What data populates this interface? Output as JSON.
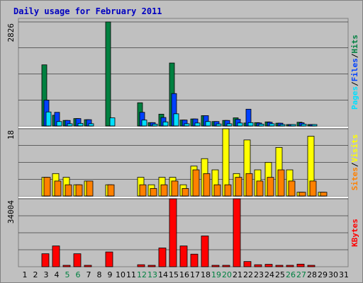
{
  "title": "Daily usage for February 2011",
  "colors": {
    "background": "#c0c0c0",
    "title": "#0000c0",
    "hits": "#008040",
    "files": "#0040ff",
    "pages": "#00e0ff",
    "visits": "#ffff00",
    "sites": "#ff8000",
    "kbytes": "#ff0000",
    "weekend_day": "#008040",
    "weekday": "#000000",
    "separator": "#ffffff",
    "grid": "#000000"
  },
  "chart_data": {
    "type": "bar",
    "title": "Daily usage for February 2011",
    "days": [
      "1",
      "2",
      "3",
      "4",
      "5",
      "6",
      "7",
      "8",
      "9",
      "10",
      "11",
      "12",
      "13",
      "14",
      "15",
      "16",
      "17",
      "18",
      "19",
      "20",
      "21",
      "22",
      "23",
      "24",
      "25",
      "26",
      "27",
      "28",
      "29",
      "30",
      "31"
    ],
    "weekend_days": [
      "5",
      "6",
      "12",
      "13",
      "19",
      "20",
      "26",
      "27"
    ],
    "panels": [
      {
        "name": "hits-panel",
        "max_label": "2826",
        "ymax": 2826,
        "series": [
          {
            "name": "Hits",
            "color": "#008040",
            "values": [
              0,
              0,
              1660,
              290,
              150,
              200,
              170,
              0,
              2826,
              0,
              0,
              630,
              90,
              320,
              1710,
              160,
              190,
              280,
              120,
              150,
              220,
              80,
              90,
              110,
              75,
              15,
              100,
              20,
              0,
              0,
              0
            ]
          },
          {
            "name": "Files",
            "color": "#0040ff",
            "values": [
              0,
              0,
              700,
              370,
              150,
              200,
              170,
              0,
              0,
              0,
              0,
              370,
              90,
              230,
              880,
              160,
              190,
              280,
              120,
              150,
              180,
              455,
              80,
              100,
              75,
              15,
              85,
              15,
              0,
              0,
              0
            ]
          },
          {
            "name": "Pages",
            "color": "#00e0ff",
            "values": [
              0,
              0,
              380,
              120,
              60,
              70,
              60,
              0,
              220,
              0,
              0,
              160,
              50,
              110,
              330,
              60,
              80,
              120,
              55,
              60,
              80,
              90,
              50,
              60,
              35,
              10,
              50,
              10,
              0,
              0,
              0
            ]
          }
        ],
        "right_label": [
          "Pages",
          "Files",
          "Hits"
        ]
      },
      {
        "name": "visits-panel",
        "max_label": "18",
        "ymax": 18,
        "series": [
          {
            "name": "Visits",
            "color": "#ffff00",
            "values": [
              0,
              0,
              5,
              6,
              5,
              3,
              4,
              0,
              3,
              0,
              0,
              5,
              3,
              5,
              5,
              3,
              8,
              10,
              7,
              18,
              6,
              15,
              7,
              9,
              13,
              7,
              1,
              16,
              1,
              0,
              0
            ]
          },
          {
            "name": "Sites",
            "color": "#ff8000",
            "values": [
              0,
              0,
              5,
              4,
              3,
              3,
              4,
              0,
              3,
              0,
              0,
              3,
              2,
              3,
              4,
              2,
              7,
              6,
              3,
              3,
              5,
              6,
              4,
              5,
              7,
              4,
              1,
              4,
              1,
              0,
              0
            ]
          }
        ],
        "right_label": [
          "Sites",
          "Visits"
        ]
      },
      {
        "name": "kbytes-panel",
        "max_label": "34004",
        "ymax": 34004,
        "series": [
          {
            "name": "KBytes",
            "color": "#ff0000",
            "values": [
              0,
              0,
              6500,
              10400,
              700,
              6500,
              700,
              0,
              7400,
              0,
              0,
              1000,
              500,
              9400,
              34004,
              10400,
              6300,
              15400,
              700,
              700,
              34004,
              2600,
              1000,
              1200,
              700,
              200,
              1300,
              200,
              0,
              0,
              0
            ]
          }
        ],
        "right_label": [
          "KBytes"
        ]
      }
    ]
  }
}
